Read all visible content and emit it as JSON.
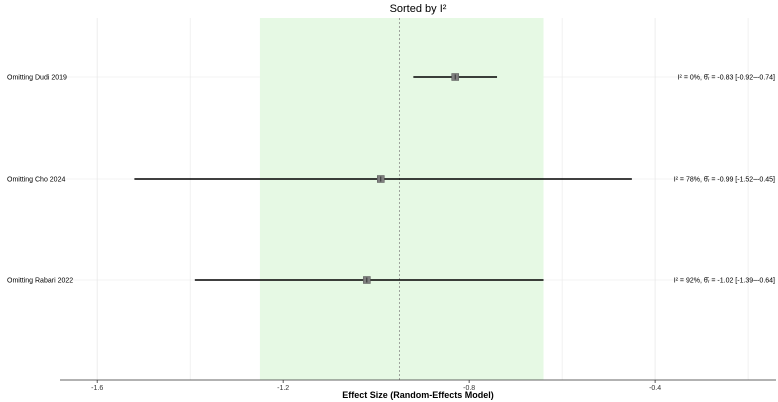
{
  "chart_data": {
    "type": "forest",
    "title": "Sorted by I²",
    "xlabel": "Effect Size (Random-Effects Model)",
    "xlim": [
      -1.68,
      -0.14
    ],
    "xticks": [
      -1.6,
      -1.2,
      -0.8,
      -0.4
    ],
    "xtick_labels": [
      "-1.6",
      "-1.2",
      "-0.8",
      "-0.4"
    ],
    "grid": true,
    "reference_line": -0.95,
    "shaded_region": {
      "from": -1.25,
      "to": -0.64,
      "color": "#e6f9e4"
    },
    "rows": [
      {
        "label": "Omitting Dudi 2019",
        "estimate": -0.83,
        "ci_low": -0.92,
        "ci_high": -0.74,
        "annotation": "I² = 0%, θ̂ᵣ = -0.83 [-0.92–-0.74]"
      },
      {
        "label": "Omitting Cho 2024",
        "estimate": -0.99,
        "ci_low": -1.52,
        "ci_high": -0.45,
        "annotation": "I² = 78%, θ̂ᵣ = -0.99 [-1.52–-0.45]"
      },
      {
        "label": "Omitting Rabari 2022",
        "estimate": -1.02,
        "ci_low": -1.39,
        "ci_high": -0.64,
        "annotation": "I² = 92%, θ̂ᵣ = -1.02 [-1.39–-0.64]"
      }
    ]
  },
  "colors": {
    "shade": "#e6f9e4",
    "ci_line": "#000000",
    "point": "#7f7f7f",
    "grid": "#e8e8e8",
    "reference": "#7f7f7f"
  }
}
